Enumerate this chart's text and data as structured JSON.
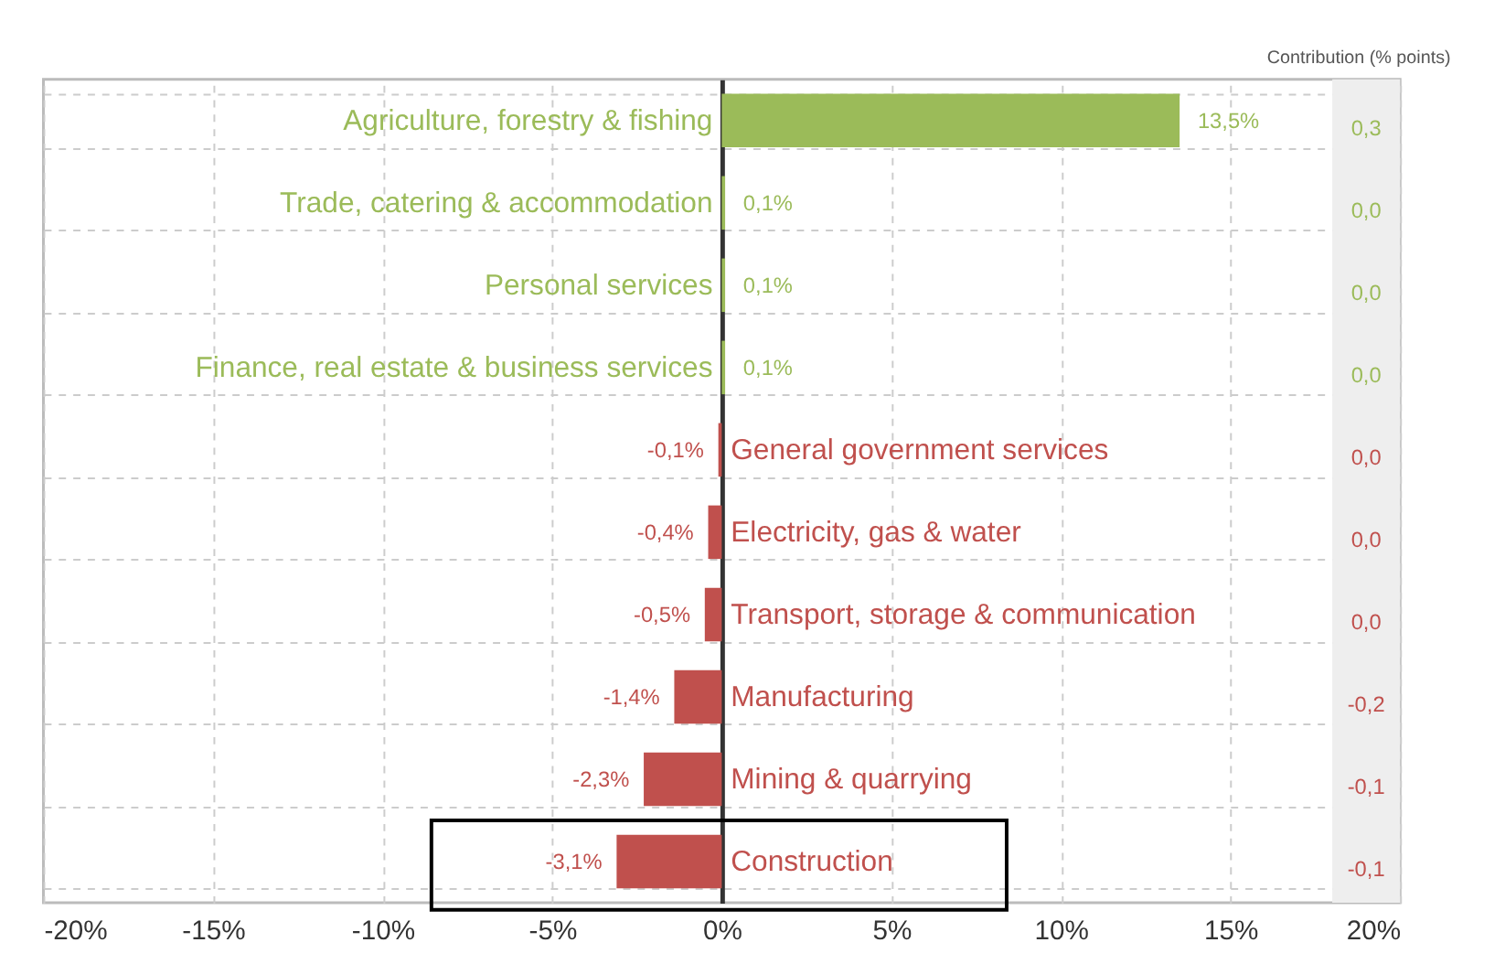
{
  "chart_data": {
    "type": "bar",
    "orientation": "horizontal",
    "categories": [
      "Agriculture, forestry & fishing",
      "Trade, catering & accommodation",
      "Personal services",
      "Finance, real estate & business services",
      "General government services",
      "Electricity, gas & water",
      "Transport, storage & communication",
      "Manufacturing",
      "Mining & quarrying",
      "Construction"
    ],
    "values": [
      13.5,
      0.1,
      0.1,
      0.1,
      -0.1,
      -0.4,
      -0.5,
      -1.4,
      -2.3,
      -3.1
    ],
    "colors": [
      "#9bbb59",
      "#9bbb59",
      "#9bbb59",
      "#9bbb59",
      "#c0504d",
      "#c0504d",
      "#c0504d",
      "#c0504d",
      "#c0504d",
      "#c0504d"
    ],
    "value_labels": [
      "13,5%",
      "0,1%",
      "0,1%",
      "0,1%",
      "-0,1%",
      "-0,4%",
      "-0,5%",
      "-1,4%",
      "-2,3%",
      "-3,1%"
    ],
    "xlim": [
      -20,
      20
    ],
    "xticks": [
      {
        "value": -20,
        "label": "-20%"
      },
      {
        "value": -15,
        "label": "-15%"
      },
      {
        "value": -10,
        "label": "-10%"
      },
      {
        "value": -5,
        "label": "-5%"
      },
      {
        "value": 0,
        "label": "0%"
      },
      {
        "value": 5,
        "label": "5%"
      },
      {
        "value": 10,
        "label": "10%"
      },
      {
        "value": 15,
        "label": "15%"
      },
      {
        "value": 20,
        "label": "20%"
      }
    ],
    "grid": true,
    "bands": [
      {
        "axis": "x",
        "from": 18,
        "to": 20,
        "color": "#eeeeee"
      }
    ],
    "annotations": [
      "Contribution (% points)",
      "0,3",
      "0,0",
      "0,0",
      "0,0",
      "0,0",
      "0,0",
      "0,0",
      "-0,2",
      "-0,1",
      "-0,1"
    ]
  }
}
